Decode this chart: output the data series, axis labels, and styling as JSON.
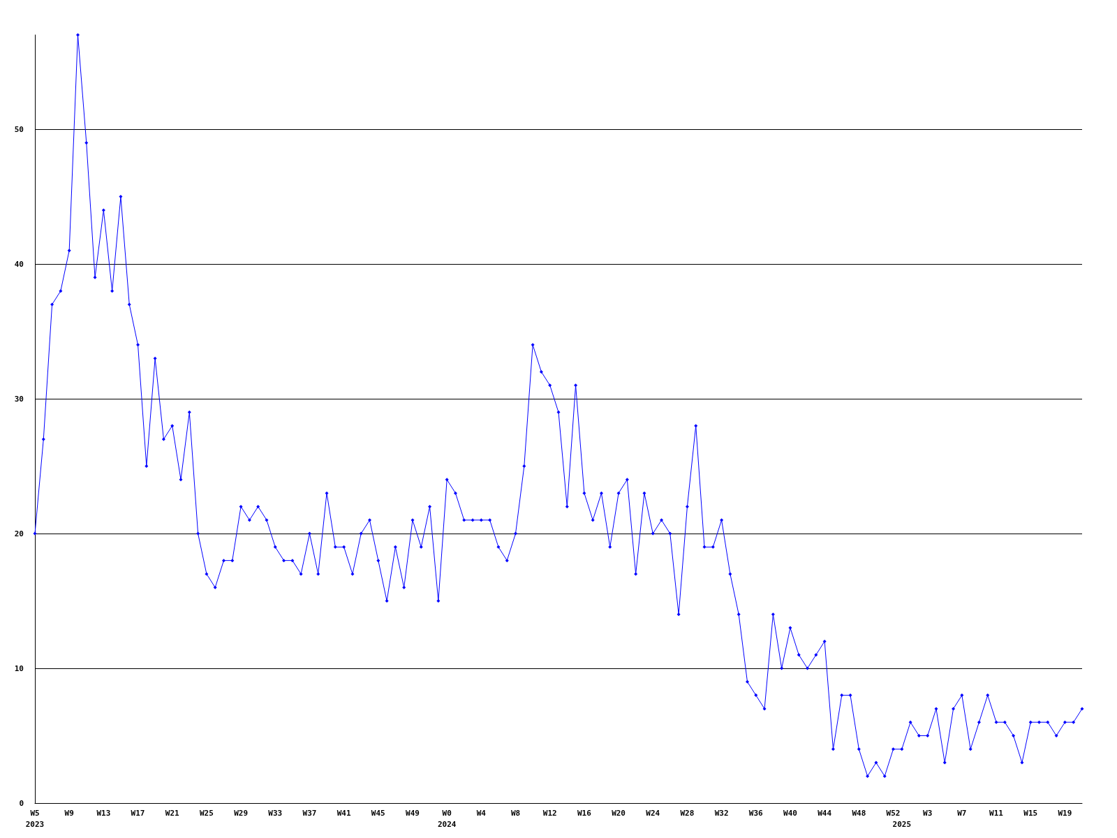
{
  "chart_data": {
    "type": "line",
    "categories": [
      "W5\n2023",
      null,
      null,
      null,
      "W9",
      null,
      null,
      null,
      "W13",
      null,
      null,
      null,
      "W17",
      null,
      null,
      null,
      "W21",
      null,
      null,
      null,
      "W25",
      null,
      null,
      null,
      "W29",
      null,
      null,
      null,
      "W33",
      null,
      null,
      null,
      "W37",
      null,
      null,
      null,
      "W41",
      null,
      null,
      null,
      "W45",
      null,
      null,
      null,
      "W49",
      null,
      null,
      null,
      "W0\n2024",
      null,
      null,
      null,
      "W4",
      null,
      null,
      null,
      "W8",
      null,
      null,
      null,
      "W12",
      null,
      null,
      null,
      "W16",
      null,
      null,
      null,
      "W20",
      null,
      null,
      null,
      "W24",
      null,
      null,
      null,
      "W28",
      null,
      null,
      null,
      "W32",
      null,
      null,
      null,
      "W36",
      null,
      null,
      null,
      "W40",
      null,
      null,
      null,
      "W44",
      null,
      null,
      null,
      "W48",
      null,
      null,
      null,
      "W52",
      "\n2025",
      null,
      null,
      "W3",
      null,
      null,
      null,
      "W7",
      null,
      null,
      null,
      "W11",
      null,
      null,
      null,
      "W15",
      null,
      null,
      null,
      "W19",
      null,
      null
    ],
    "series": [
      {
        "color": "#0000ff",
        "values": [
          20,
          27,
          37,
          38,
          41,
          57,
          49,
          39,
          44,
          38,
          45,
          37,
          34,
          25,
          33,
          27,
          28,
          24,
          29,
          20,
          17,
          16,
          18,
          18,
          22,
          21,
          22,
          21,
          19,
          18,
          18,
          17,
          20,
          17,
          23,
          19,
          19,
          17,
          20,
          21,
          18,
          15,
          19,
          16,
          21,
          19,
          22,
          15,
          24,
          23,
          21,
          21,
          21,
          21,
          19,
          18,
          20,
          25,
          34,
          32,
          31,
          29,
          22,
          31,
          23,
          21,
          23,
          19,
          23,
          24,
          17,
          23,
          20,
          21,
          20,
          14,
          22,
          28,
          19,
          19,
          21,
          17,
          14,
          9,
          8,
          7,
          14,
          10,
          13,
          11,
          10,
          11,
          12,
          4,
          8,
          8,
          4,
          2,
          3,
          2,
          4,
          4,
          6,
          5,
          5,
          7,
          3,
          7,
          8,
          4,
          6,
          8,
          6,
          6,
          5,
          3,
          6,
          6,
          6,
          5,
          6,
          6,
          7
        ]
      }
    ],
    "ylim": [
      0,
      57
    ],
    "yticks": [
      0,
      10,
      20,
      30,
      40,
      50
    ],
    "grid": "y",
    "marker": "diamond",
    "line_style": "solid"
  }
}
